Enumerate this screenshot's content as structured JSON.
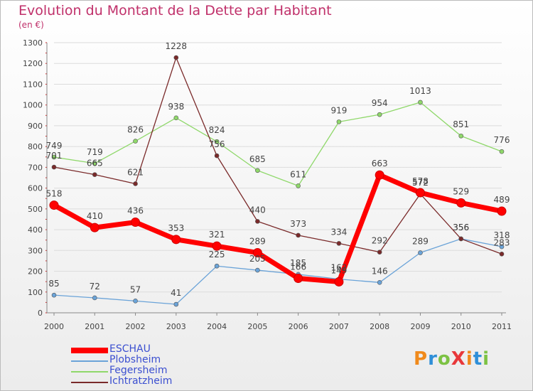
{
  "title": "Evolution du Montant de la Dette par Habitant",
  "subtitle": "(en €)",
  "logo": {
    "text": "ProXiti",
    "colors": [
      "#f08a1c",
      "#2f8fd8",
      "#7cc243",
      "#e8383b",
      "#f08a1c",
      "#2f8fd8",
      "#7cc243"
    ]
  },
  "chart_data": {
    "type": "line",
    "x": [
      "2000",
      "2001",
      "2002",
      "2003",
      "2004",
      "2005",
      "2006",
      "2007",
      "2008",
      "2009",
      "2010",
      "2011"
    ],
    "ylim": [
      0,
      1300
    ],
    "yticks": [
      0,
      100,
      200,
      300,
      400,
      500,
      600,
      700,
      800,
      900,
      1000,
      1100,
      1200,
      1300
    ],
    "grid": true,
    "legend": "bottom-left",
    "series": [
      {
        "name": "ESCHAU",
        "color": "#ff0000",
        "values": [
          518,
          410,
          436,
          353,
          321,
          289,
          166,
          149,
          663,
          578,
          529,
          489
        ],
        "labels": [
          "518",
          "410",
          "436",
          "353",
          "321",
          "289",
          "166",
          "149",
          "663",
          "578",
          "529",
          "489"
        ]
      },
      {
        "name": "Plobsheim",
        "color": "#6aa3d8",
        "values": [
          85,
          72,
          57,
          41,
          225,
          205,
          185,
          162,
          146,
          289,
          356,
          318
        ],
        "labels": [
          "85",
          "72",
          "57",
          "41",
          "225",
          "205",
          "185",
          "162",
          "146",
          "289",
          "356",
          "318"
        ]
      },
      {
        "name": "Fegersheim",
        "color": "#8fd86a",
        "values": [
          749,
          719,
          826,
          938,
          824,
          685,
          611,
          919,
          954,
          1013,
          851,
          776
        ],
        "labels": [
          "749",
          "719",
          "826",
          "938",
          "824",
          "685",
          "611",
          "919",
          "954",
          "1013",
          "851",
          "776"
        ]
      },
      {
        "name": "Ichtratzheim",
        "color": "#7a2a2a",
        "values": [
          701,
          665,
          621,
          1228,
          756,
          440,
          373,
          334,
          292,
          572,
          356,
          283
        ],
        "labels": [
          "701",
          "665",
          "621",
          "1228",
          "756",
          "440",
          "373",
          "334",
          "292",
          "572",
          "356",
          "283"
        ]
      }
    ]
  }
}
